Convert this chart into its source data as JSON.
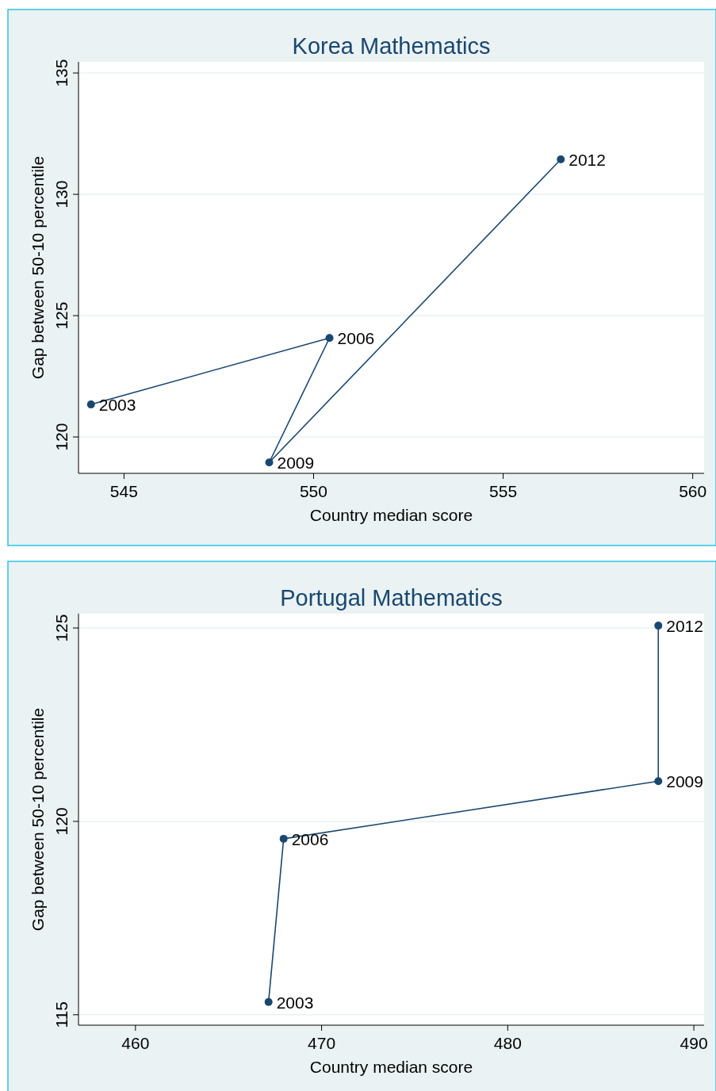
{
  "chart_data": [
    {
      "type": "line",
      "title": "Korea Mathematics",
      "xlabel": "Country median score",
      "ylabel": "Gap between 50-10 percentile",
      "x": [
        544.13,
        550.42,
        548.83,
        556.52
      ],
      "series": [
        {
          "color": "#1a476f",
          "values": [
            121.34,
            124.08,
            118.95,
            131.44
          ]
        }
      ],
      "xlim": [
        543.8,
        560.3
      ],
      "xticks": [
        545,
        550,
        555,
        560
      ],
      "ylim": [
        118.5,
        135.46
      ],
      "yticks": [
        120,
        125,
        130,
        135
      ],
      "grid": "y",
      "marker": "circle",
      "line_style": "solid",
      "annotations": [
        {
          "text": "2003",
          "x": 544.13,
          "y": 121.34
        },
        {
          "text": "2006",
          "x": 550.42,
          "y": 124.08
        },
        {
          "text": "2009",
          "x": 548.83,
          "y": 118.95
        },
        {
          "text": "2012",
          "x": 556.52,
          "y": 131.44
        }
      ]
    },
    {
      "type": "line",
      "title": "Portugal Mathematics",
      "xlabel": "Country median score",
      "ylabel": "Gap between 50-10 percentile",
      "x": [
        467.15,
        467.96,
        488.09,
        488.09
      ],
      "series": [
        {
          "color": "#1a476f",
          "values": [
            115.33,
            119.55,
            121.04,
            125.06
          ]
        }
      ],
      "xlim": [
        456.94,
        490.55
      ],
      "xticks": [
        460,
        470,
        480,
        490
      ],
      "ylim": [
        114.73,
        125.37
      ],
      "yticks": [
        115,
        120,
        125
      ],
      "grid": "y",
      "marker": "circle",
      "line_style": "solid",
      "annotations": [
        {
          "text": "2003",
          "x": 467.15,
          "y": 115.33
        },
        {
          "text": "2006",
          "x": 467.96,
          "y": 119.55
        },
        {
          "text": "2009",
          "x": 488.09,
          "y": 121.04
        },
        {
          "text": "2012",
          "x": 488.09,
          "y": 125.06
        }
      ]
    }
  ]
}
